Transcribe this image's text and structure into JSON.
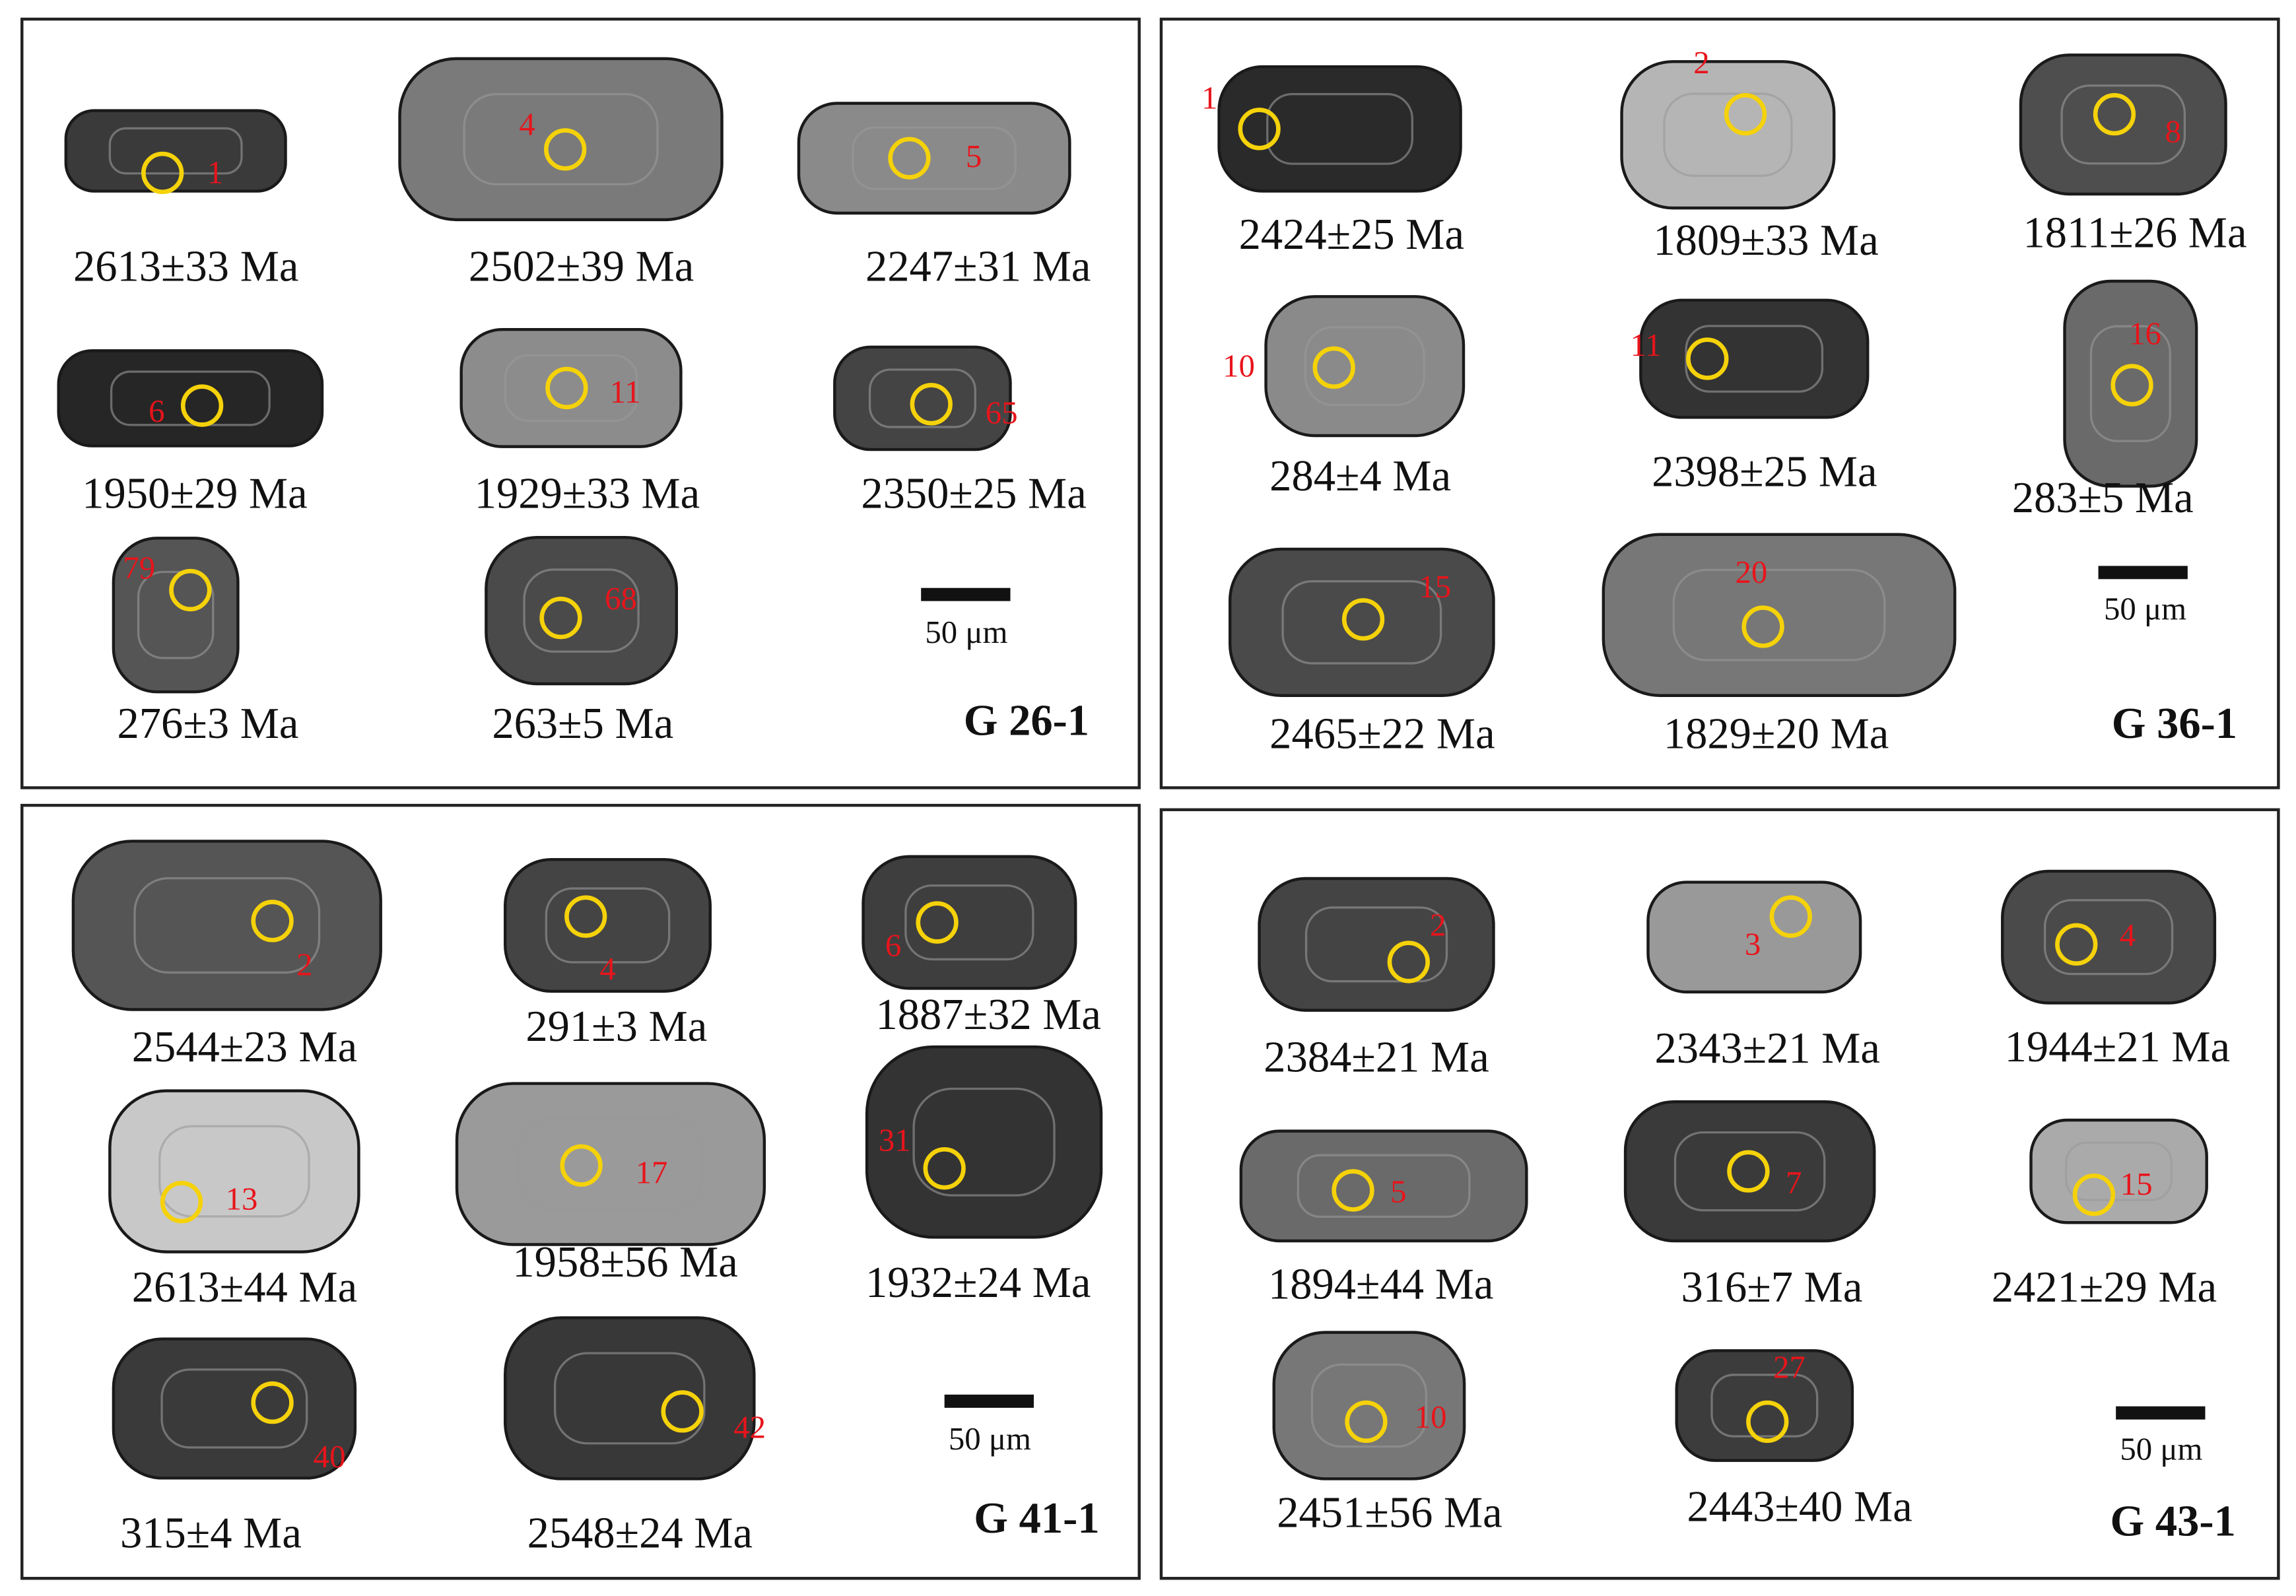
{
  "panels": [
    {
      "sample": "G 26-1",
      "scale": "50 μm",
      "grains": [
        {
          "spot": "1",
          "age": "2613±33 Ma"
        },
        {
          "spot": "4",
          "age": "2502±39 Ma"
        },
        {
          "spot": "5",
          "age": "2247±31 Ma"
        },
        {
          "spot": "6",
          "age": "1950±29 Ma"
        },
        {
          "spot": "11",
          "age": "1929±33 Ma"
        },
        {
          "spot": "65",
          "age": "2350±25 Ma"
        },
        {
          "spot": "79",
          "age": "276±3 Ma"
        },
        {
          "spot": "68",
          "age": "263±5 Ma"
        }
      ]
    },
    {
      "sample": "G 36-1",
      "scale": "50 μm",
      "grains": [
        {
          "spot": "1",
          "age": "2424±25 Ma"
        },
        {
          "spot": "2",
          "age": "1809±33 Ma"
        },
        {
          "spot": "8",
          "age": "1811±26 Ma"
        },
        {
          "spot": "10",
          "age": "284±4 Ma"
        },
        {
          "spot": "11",
          "age": "2398±25 Ma"
        },
        {
          "spot": "16",
          "age": "283±5 Ma"
        },
        {
          "spot": "15",
          "age": "2465±22 Ma"
        },
        {
          "spot": "20",
          "age": "1829±20 Ma"
        }
      ]
    },
    {
      "sample": "G 41-1",
      "scale": "50 μm",
      "grains": [
        {
          "spot": "2",
          "age": "2544±23 Ma"
        },
        {
          "spot": "4",
          "age": "291±3 Ma"
        },
        {
          "spot": "6",
          "age": "1887±32 Ma"
        },
        {
          "spot": "13",
          "age": "2613±44 Ma"
        },
        {
          "spot": "17",
          "age": "1958±56 Ma"
        },
        {
          "spot": "31",
          "age": "1932±24 Ma"
        },
        {
          "spot": "40",
          "age": "315±4 Ma"
        },
        {
          "spot": "42",
          "age": "2548±24 Ma"
        }
      ]
    },
    {
      "sample": "G 43-1",
      "scale": "50 μm",
      "grains": [
        {
          "spot": "2",
          "age": "2384±21 Ma"
        },
        {
          "spot": "3",
          "age": "2343±21 Ma"
        },
        {
          "spot": "4",
          "age": "1944±21 Ma"
        },
        {
          "spot": "5",
          "age": "1894±44 Ma"
        },
        {
          "spot": "7",
          "age": "316±7 Ma"
        },
        {
          "spot": "15",
          "age": "2421±29 Ma"
        },
        {
          "spot": "10",
          "age": "2451±56 Ma"
        },
        {
          "spot": "27",
          "age": "2443±40 Ma"
        }
      ]
    }
  ]
}
